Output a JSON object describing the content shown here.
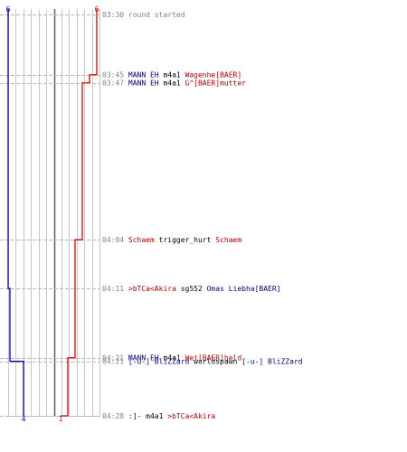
{
  "chart_data": {
    "type": "step-line",
    "teams": [
      {
        "key": "blue",
        "color": "#0000cc",
        "start": 6,
        "end": 4
      },
      {
        "key": "red",
        "color": "#dd0000",
        "start": 6,
        "end": 1
      }
    ],
    "ylim": [
      0,
      6
    ],
    "x_range_seconds": [
      810,
      1708
    ],
    "top_labels": {
      "blue": "6",
      "red": "6"
    },
    "bottom_labels": {
      "blue": "4",
      "red": "1"
    },
    "events": [
      {
        "time": "03:30",
        "seconds": 810,
        "blue": 6,
        "red": 6,
        "parts": [
          {
            "t": "round started",
            "c": "gray"
          }
        ]
      },
      {
        "time": "03:45",
        "seconds": 945,
        "blue": 6,
        "red": 5,
        "parts": [
          {
            "t": "MANN EH",
            "c": "blue"
          },
          {
            "t": " m4a1 ",
            "c": "text"
          },
          {
            "t": "Wagenhe[BAER]",
            "c": "red"
          }
        ]
      },
      {
        "time": "03:47",
        "seconds": 963,
        "blue": 6,
        "red": 4,
        "parts": [
          {
            "t": "MANN EH",
            "c": "blue"
          },
          {
            "t": " m4a1 ",
            "c": "text"
          },
          {
            "t": "G^[BAER]mutter",
            "c": "red"
          }
        ]
      },
      {
        "time": "04:04",
        "seconds": 1314,
        "blue": 6,
        "red": 3,
        "parts": [
          {
            "t": "Schaem",
            "c": "red"
          },
          {
            "t": " trigger_hurt ",
            "c": "text"
          },
          {
            "t": "Schaem",
            "c": "red"
          }
        ]
      },
      {
        "time": "04:11",
        "seconds": 1423,
        "blue": 5,
        "red": 3,
        "parts": [
          {
            "t": ">bTCa<Akira",
            "c": "red"
          },
          {
            "t": " sg552 ",
            "c": "text"
          },
          {
            "t": "Omas Liebha[BAER]",
            "c": "blue"
          }
        ]
      },
      {
        "time": "04:21",
        "seconds": 1578,
        "blue": 5,
        "red": 2,
        "parts": [
          {
            "t": "MANN EH",
            "c": "blue"
          },
          {
            "t": " m4a1 ",
            "c": "text"
          },
          {
            "t": "Wei[BAER]held",
            "c": "red"
          }
        ]
      },
      {
        "time": "04:21",
        "seconds": 1586,
        "blue": 4,
        "red": 2,
        "parts": [
          {
            "t": "[-u-] BliZZard",
            "c": "blue"
          },
          {
            "t": " worldspawn ",
            "c": "text"
          },
          {
            "t": "[-u-] BliZZard",
            "c": "blue"
          }
        ]
      },
      {
        "time": "04:28",
        "seconds": 1708,
        "blue": 4,
        "red": 1,
        "parts": [
          {
            "t": ":]-",
            "c": "blue"
          },
          {
            "t": " m4a1 ",
            "c": "text"
          },
          {
            "t": ">bTCa<Akira",
            "c": "red"
          }
        ]
      }
    ]
  }
}
